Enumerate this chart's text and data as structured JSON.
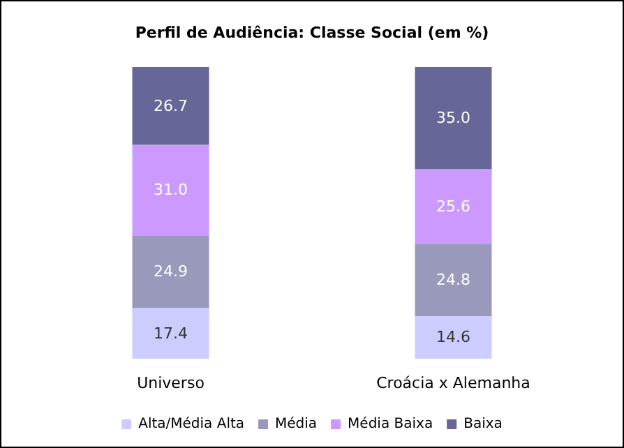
{
  "chart_data": {
    "type": "bar",
    "title": "Perfil de Audiência: Classe Social (em %)",
    "categories": [
      "Universo",
      "Croácia x Alemanha"
    ],
    "stacked": true,
    "tick_labels": "x",
    "legend": "bottom",
    "series": [
      {
        "name": "Alta/Média Alta",
        "color": "#ccccff",
        "values": [
          17.4,
          14.6
        ],
        "value_labels": [
          "17.4",
          "14.6"
        ]
      },
      {
        "name": "Média",
        "color": "#9999bb",
        "values": [
          24.9,
          24.8
        ],
        "value_labels": [
          "24.9",
          "24.8"
        ]
      },
      {
        "name": "Média Baixa",
        "color": "#cc99ff",
        "values": [
          31.0,
          25.6
        ],
        "value_labels": [
          "31.0",
          "25.6"
        ]
      },
      {
        "name": "Baixa",
        "color": "#666699",
        "values": [
          26.7,
          35.0
        ],
        "value_labels": [
          "26.7",
          "35.0"
        ]
      }
    ]
  }
}
